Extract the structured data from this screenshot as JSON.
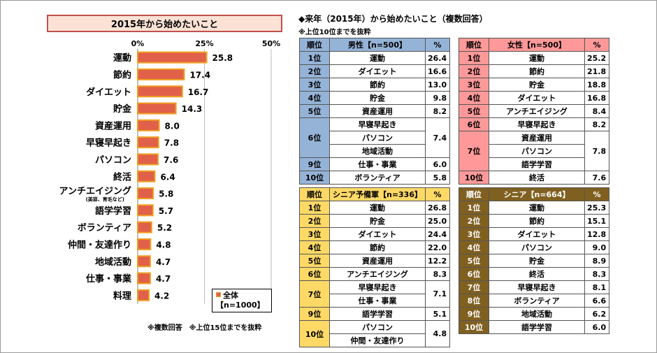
{
  "chart_data": {
    "type": "bar",
    "orientation": "horizontal",
    "title": "2015年から始めたいこと",
    "categories": [
      "運動",
      "節約",
      "ダイエット",
      "貯金",
      "資産運用",
      "早寝早起き",
      "パソコン",
      "終活",
      "アンチエイジング",
      "語学学習",
      "ボランティア",
      "仲間・友達作り",
      "地域活動",
      "仕事・事業",
      "料理"
    ],
    "category_notes": {
      "アンチエイジング": "(美容、育毛など)"
    },
    "values": [
      25.8,
      17.4,
      16.7,
      14.3,
      8.0,
      7.8,
      7.6,
      6.4,
      5.8,
      5.7,
      5.2,
      4.8,
      4.7,
      4.7,
      4.2
    ],
    "value_labels": [
      "25.8",
      "17.4",
      "16.7",
      "14.3",
      "8.0",
      "7.8",
      "7.6",
      "6.4",
      "5.8",
      "5.7",
      "5.2",
      "4.8",
      "4.7",
      "4.7",
      "4.2"
    ],
    "xlim": [
      0,
      50
    ],
    "xticks": [
      0,
      25,
      50
    ],
    "xtick_labels": [
      "0%",
      "25%",
      "50%"
    ],
    "series_name": "全体",
    "legend": {
      "name": "全体",
      "n": "【n=1000】",
      "position": "bottom-right"
    },
    "bar_color": "#e0604a",
    "bar_edge_color": "#f0a020"
  },
  "chart_note": "※複数回答　※上位15位までを抜粋",
  "right": {
    "title": "◆来年（2015年）から始めたいこと（複数回答）",
    "subtitle": "※上位10位までを抜粋"
  },
  "tables": {
    "male": {
      "headers": [
        "順位",
        "男性【n=500】",
        "%"
      ],
      "rows": [
        {
          "rank": "1位",
          "items": [
            "運動"
          ],
          "value": "26.4"
        },
        {
          "rank": "2位",
          "items": [
            "ダイエット"
          ],
          "value": "16.6"
        },
        {
          "rank": "3位",
          "items": [
            "節約"
          ],
          "value": "13.0"
        },
        {
          "rank": "4位",
          "items": [
            "貯金"
          ],
          "value": "9.8"
        },
        {
          "rank": "5位",
          "items": [
            "資産運用"
          ],
          "value": "8.2"
        },
        {
          "rank": "6位",
          "items": [
            "早寝早起き",
            "パソコン",
            "地域活動"
          ],
          "value": "7.4"
        },
        {
          "rank": "9位",
          "items": [
            "仕事・事業"
          ],
          "value": "6.0"
        },
        {
          "rank": "10位",
          "items": [
            "ボランティア"
          ],
          "value": "5.8"
        }
      ]
    },
    "female": {
      "headers": [
        "順位",
        "女性【n=500】",
        "%"
      ],
      "rows": [
        {
          "rank": "1位",
          "items": [
            "運動"
          ],
          "value": "25.2"
        },
        {
          "rank": "2位",
          "items": [
            "節約"
          ],
          "value": "21.8"
        },
        {
          "rank": "3位",
          "items": [
            "貯金"
          ],
          "value": "18.8"
        },
        {
          "rank": "4位",
          "items": [
            "ダイエット"
          ],
          "value": "16.8"
        },
        {
          "rank": "5位",
          "items": [
            "アンチエイジング"
          ],
          "value": "8.4"
        },
        {
          "rank": "6位",
          "items": [
            "早寝早起き"
          ],
          "value": "8.2"
        },
        {
          "rank": "7位",
          "items": [
            "資産運用",
            "パソコン",
            "語学学習"
          ],
          "value": "7.8"
        },
        {
          "rank": "10位",
          "items": [
            "終活"
          ],
          "value": "7.6"
        }
      ]
    },
    "senior_pre": {
      "headers": [
        "順位",
        "シニア予備軍【n=336】",
        "%"
      ],
      "rows": [
        {
          "rank": "1位",
          "items": [
            "運動"
          ],
          "value": "26.8"
        },
        {
          "rank": "2位",
          "items": [
            "貯金"
          ],
          "value": "25.0"
        },
        {
          "rank": "3位",
          "items": [
            "ダイエット"
          ],
          "value": "24.4"
        },
        {
          "rank": "4位",
          "items": [
            "節約"
          ],
          "value": "22.0"
        },
        {
          "rank": "5位",
          "items": [
            "資産運用"
          ],
          "value": "12.2"
        },
        {
          "rank": "6位",
          "items": [
            "アンチエイジング"
          ],
          "value": "8.3"
        },
        {
          "rank": "7位",
          "items": [
            "早寝早起き",
            "仕事・事業"
          ],
          "value": "7.1"
        },
        {
          "rank": "9位",
          "items": [
            "語学学習"
          ],
          "value": "5.1"
        },
        {
          "rank": "10位",
          "items": [
            "パソコン",
            "仲間・友達作り"
          ],
          "value": "4.8"
        }
      ]
    },
    "senior": {
      "headers": [
        "順位",
        "シニア【n=664】",
        "%"
      ],
      "rows": [
        {
          "rank": "1位",
          "items": [
            "運動"
          ],
          "value": "25.3"
        },
        {
          "rank": "2位",
          "items": [
            "節約"
          ],
          "value": "15.1"
        },
        {
          "rank": "3位",
          "items": [
            "ダイエット"
          ],
          "value": "12.8"
        },
        {
          "rank": "4位",
          "items": [
            "パソコン"
          ],
          "value": "9.0"
        },
        {
          "rank": "5位",
          "items": [
            "貯金"
          ],
          "value": "8.9"
        },
        {
          "rank": "6位",
          "items": [
            "終活"
          ],
          "value": "8.3"
        },
        {
          "rank": "7位",
          "items": [
            "早寝早起き"
          ],
          "value": "8.1"
        },
        {
          "rank": "8位",
          "items": [
            "ボランティア"
          ],
          "value": "6.6"
        },
        {
          "rank": "9位",
          "items": [
            "地域活動"
          ],
          "value": "6.2"
        },
        {
          "rank": "10位",
          "items": [
            "語学学習"
          ],
          "value": "6.0"
        }
      ]
    }
  }
}
